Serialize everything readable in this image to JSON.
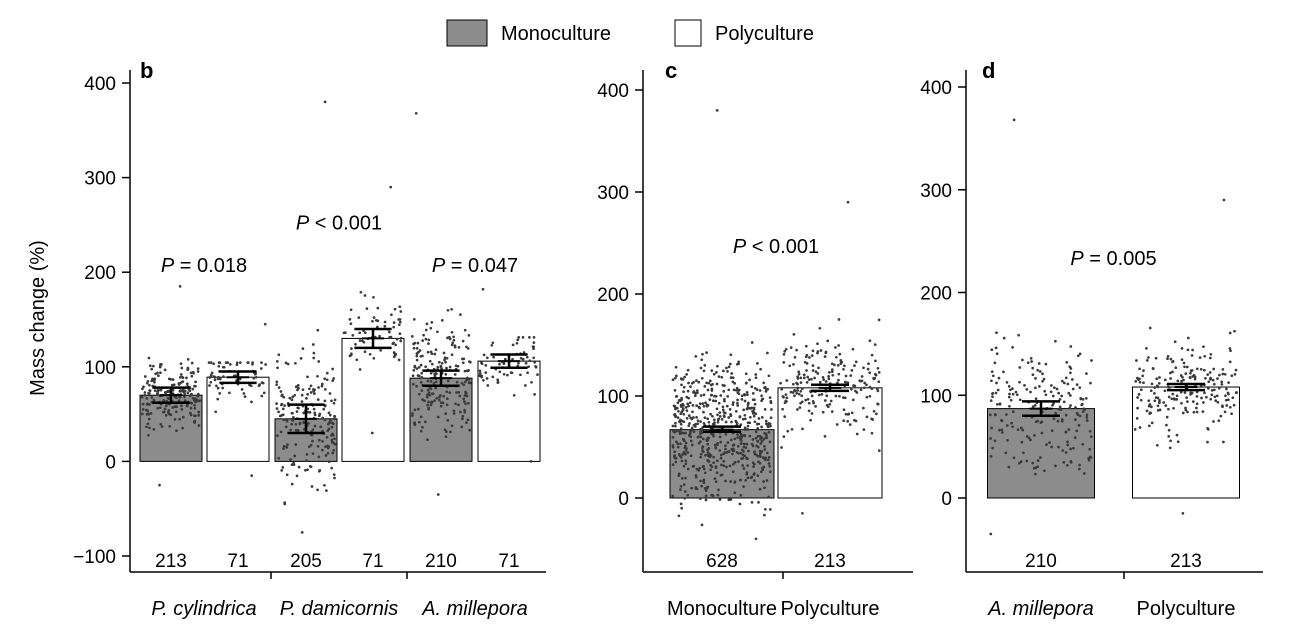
{
  "legend": {
    "items": [
      {
        "label": "Monoculture",
        "color": "#8c8c8c"
      },
      {
        "label": "Polyculture",
        "color": "#ffffff"
      }
    ]
  },
  "shared_ylabel": "Mass change (%)",
  "colors": {
    "monoculture": "#8c8c8c",
    "polyculture": "#ffffff",
    "points": "#3a3a3a",
    "axis": "#000000"
  },
  "chart_data": [
    {
      "panel": "b",
      "type": "bar",
      "ylabel": "Mass change (%)",
      "ylim": [
        -100,
        400
      ],
      "yticks": [
        -100,
        0,
        100,
        200,
        300,
        400
      ],
      "groups": [
        "P. cylindrica",
        "P. damicornis",
        "A. millepora"
      ],
      "bars": [
        {
          "group": "P. cylindrica",
          "series": "Monoculture",
          "mean": 70,
          "se_low": 62,
          "se_high": 78,
          "n": "213",
          "spread": [
            -25,
            185
          ]
        },
        {
          "group": "P. cylindrica",
          "series": "Polyculture",
          "mean": 89,
          "se_low": 83,
          "se_high": 95,
          "n": "71",
          "spread": [
            -15,
            145
          ]
        },
        {
          "group": "P. damicornis",
          "series": "Monoculture",
          "mean": 45,
          "se_low": 30,
          "se_high": 60,
          "n": "205",
          "spread": [
            -75,
            380
          ]
        },
        {
          "group": "P. damicornis",
          "series": "Polyculture",
          "mean": 130,
          "se_low": 120,
          "se_high": 140,
          "n": "71",
          "spread": [
            30,
            290
          ]
        },
        {
          "group": "A. millepora",
          "series": "Monoculture",
          "mean": 88,
          "se_low": 80,
          "se_high": 96,
          "n": "210",
          "spread": [
            -35,
            368
          ]
        },
        {
          "group": "A. millepora",
          "series": "Polyculture",
          "mean": 106,
          "se_low": 99,
          "se_high": 113,
          "n": "71",
          "spread": [
            0,
            182
          ]
        }
      ],
      "annotations": [
        {
          "text": "P = 0.018",
          "x_group": 0,
          "y": 200
        },
        {
          "text": "P < 0.001",
          "x_group": 1,
          "y": 245
        },
        {
          "text": "P = 0.047",
          "x_group": 2,
          "y": 200
        }
      ]
    },
    {
      "panel": "c",
      "type": "bar",
      "ylim": [
        -70,
        420
      ],
      "yticks": [
        0,
        100,
        200,
        300,
        400
      ],
      "groups": [
        "Monoculture",
        "Polyculture"
      ],
      "bars": [
        {
          "group": "Monoculture",
          "series": "Monoculture",
          "mean": 67,
          "se_low": 65,
          "se_high": 70,
          "n": "628",
          "spread": [
            -40,
            380
          ]
        },
        {
          "group": "Polyculture",
          "series": "Polyculture",
          "mean": 108,
          "se_low": 105,
          "se_high": 111,
          "n": "213",
          "spread": [
            -15,
            290
          ]
        }
      ],
      "annotations": [
        {
          "text": "P < 0.001",
          "x_group": 0.5,
          "y": 240
        }
      ]
    },
    {
      "panel": "d",
      "type": "bar",
      "ylim": [
        -70,
        420
      ],
      "yticks": [
        0,
        100,
        200,
        300,
        400
      ],
      "groups": [
        "A. millepora",
        "Polyculture"
      ],
      "bars": [
        {
          "group": "A. millepora",
          "series": "Monoculture",
          "mean": 87,
          "se_low": 80,
          "se_high": 94,
          "n": "210",
          "spread": [
            -35,
            368
          ]
        },
        {
          "group": "Polyculture",
          "series": "Polyculture",
          "mean": 108,
          "se_low": 105,
          "se_high": 111,
          "n": "213",
          "spread": [
            -15,
            290
          ]
        }
      ],
      "annotations": [
        {
          "text": "P = 0.005",
          "x_group": 0.5,
          "y": 227
        }
      ]
    }
  ]
}
